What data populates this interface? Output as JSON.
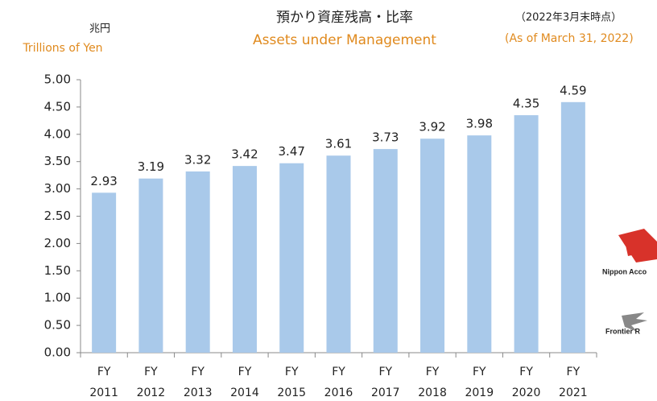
{
  "chart_data": {
    "type": "bar",
    "title": "預かり資産残高・比率",
    "subtitle": "Assets under Management",
    "unit_label": "兆円",
    "unit_label_en": "Trillions of Yen",
    "date_note": "（2022年3月末時点）",
    "date_note_en": "(As of March 31, 2022)",
    "logos": [
      "Nippon Acco",
      "Frontier R"
    ],
    "categories": [
      "FY 2011",
      "FY 2012",
      "FY 2013",
      "FY 2014",
      "FY 2015",
      "FY 2016",
      "FY 2017",
      "FY 2018",
      "FY 2019",
      "FY 2020",
      "FY 2021"
    ],
    "values": [
      2.93,
      3.19,
      3.32,
      3.42,
      3.47,
      3.61,
      3.73,
      3.92,
      3.98,
      4.35,
      4.59
    ],
    "color": "#a9c9ea",
    "ylim": [
      0,
      5
    ],
    "yticks": [
      {
        "value": 0,
        "label": "0.00"
      },
      {
        "value": 0.5,
        "label": "0.50"
      },
      {
        "value": 1,
        "label": "1.00"
      },
      {
        "value": 1.5,
        "label": "1.50"
      },
      {
        "value": 2,
        "label": "2.00"
      },
      {
        "value": 2.5,
        "label": "2.50"
      },
      {
        "value": 3,
        "label": "3.00"
      },
      {
        "value": 3.5,
        "label": "3.50"
      },
      {
        "value": 4,
        "label": "4.00"
      },
      {
        "value": 4.5,
        "label": "4.50"
      },
      {
        "value": 5,
        "label": "5.00"
      }
    ],
    "grid": false
  }
}
